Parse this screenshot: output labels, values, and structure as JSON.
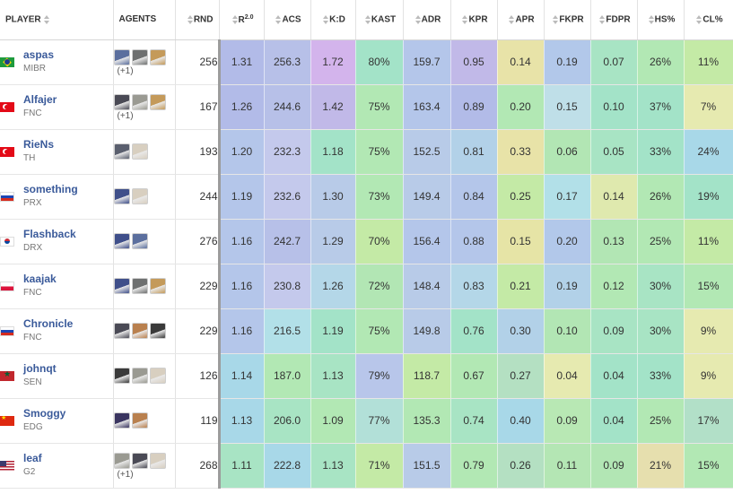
{
  "header": {
    "player": "PLAYER",
    "agents": "AGENTS",
    "rnd": "RND",
    "r2": "R",
    "r2_sup": "2.0",
    "acs": "ACS",
    "kd": "K:D",
    "kast": "KAST",
    "adr": "ADR",
    "kpr": "KPR",
    "apr": "APR",
    "fkpr": "FKPR",
    "fdpr": "FDPR",
    "hs": "HS%",
    "cl": "CL%"
  },
  "rows": [
    {
      "name": "aspas",
      "team": "MIBR",
      "flag": "br",
      "agents": [
        {
          "icon": "agent-icon",
          "color": "#5b6f9e"
        },
        {
          "icon": "agent-icon",
          "color": "#6e7070"
        },
        {
          "icon": "agent-icon",
          "color": "#c49a5a"
        }
      ],
      "more": "(+1)",
      "rnd": "256",
      "r2": "1.31",
      "acs": "256.3",
      "kd": "1.72",
      "kast": "80%",
      "adr": "159.7",
      "kpr": "0.95",
      "apr": "0.14",
      "fkpr": "0.19",
      "fdpr": "0.07",
      "hs": "26%",
      "cl": "11%"
    },
    {
      "name": "Alfajer",
      "team": "FNC",
      "flag": "tr",
      "agents": [
        {
          "icon": "agent-icon",
          "color": "#4a4a55"
        },
        {
          "icon": "agent-icon",
          "color": "#9a9a92"
        },
        {
          "icon": "agent-icon",
          "color": "#c49a5a"
        }
      ],
      "more": "(+1)",
      "rnd": "167",
      "r2": "1.26",
      "acs": "244.6",
      "kd": "1.42",
      "kast": "75%",
      "adr": "163.4",
      "kpr": "0.89",
      "apr": "0.20",
      "fkpr": "0.15",
      "fdpr": "0.10",
      "hs": "37%",
      "cl": "7%"
    },
    {
      "name": "RieNs",
      "team": "TH",
      "flag": "tr",
      "agents": [
        {
          "icon": "agent-icon",
          "color": "#5a5f6e"
        },
        {
          "icon": "agent-icon",
          "color": "#d8cfc0"
        }
      ],
      "more": "",
      "rnd": "193",
      "r2": "1.20",
      "acs": "232.3",
      "kd": "1.18",
      "kast": "75%",
      "adr": "152.5",
      "kpr": "0.81",
      "apr": "0.33",
      "fkpr": "0.06",
      "fdpr": "0.05",
      "hs": "33%",
      "cl": "24%"
    },
    {
      "name": "something",
      "team": "PRX",
      "flag": "ru",
      "agents": [
        {
          "icon": "agent-icon",
          "color": "#3f4f8a"
        },
        {
          "icon": "agent-icon",
          "color": "#d8cfc0"
        }
      ],
      "more": "",
      "rnd": "244",
      "r2": "1.19",
      "acs": "232.6",
      "kd": "1.30",
      "kast": "73%",
      "adr": "149.4",
      "kpr": "0.84",
      "apr": "0.25",
      "fkpr": "0.17",
      "fdpr": "0.14",
      "hs": "26%",
      "cl": "19%"
    },
    {
      "name": "Flashback",
      "team": "DRX",
      "flag": "kr",
      "agents": [
        {
          "icon": "agent-icon",
          "color": "#3f4f8a"
        },
        {
          "icon": "agent-icon",
          "color": "#5b6f9e"
        }
      ],
      "more": "",
      "rnd": "276",
      "r2": "1.16",
      "acs": "242.7",
      "kd": "1.29",
      "kast": "70%",
      "adr": "156.4",
      "kpr": "0.88",
      "apr": "0.15",
      "fkpr": "0.20",
      "fdpr": "0.13",
      "hs": "25%",
      "cl": "11%"
    },
    {
      "name": "kaajak",
      "team": "FNC",
      "flag": "pl",
      "agents": [
        {
          "icon": "agent-icon",
          "color": "#3f4f8a"
        },
        {
          "icon": "agent-icon",
          "color": "#6e7070"
        },
        {
          "icon": "agent-icon",
          "color": "#c49a5a"
        }
      ],
      "more": "",
      "rnd": "229",
      "r2": "1.16",
      "acs": "230.8",
      "kd": "1.26",
      "kast": "72%",
      "adr": "148.4",
      "kpr": "0.83",
      "apr": "0.21",
      "fkpr": "0.19",
      "fdpr": "0.12",
      "hs": "30%",
      "cl": "15%"
    },
    {
      "name": "Chronicle",
      "team": "FNC",
      "flag": "ru",
      "agents": [
        {
          "icon": "agent-icon",
          "color": "#4a4a55"
        },
        {
          "icon": "agent-icon",
          "color": "#b9804e"
        },
        {
          "icon": "agent-icon",
          "color": "#3a3a3a"
        }
      ],
      "more": "",
      "rnd": "229",
      "r2": "1.16",
      "acs": "216.5",
      "kd": "1.19",
      "kast": "75%",
      "adr": "149.8",
      "kpr": "0.76",
      "apr": "0.30",
      "fkpr": "0.10",
      "fdpr": "0.09",
      "hs": "30%",
      "cl": "9%"
    },
    {
      "name": "johnqt",
      "team": "SEN",
      "flag": "ma",
      "agents": [
        {
          "icon": "agent-icon",
          "color": "#3a3a3a"
        },
        {
          "icon": "agent-icon",
          "color": "#9a9a92"
        },
        {
          "icon": "agent-icon",
          "color": "#d8cfc0"
        }
      ],
      "more": "",
      "rnd": "126",
      "r2": "1.14",
      "acs": "187.0",
      "kd": "1.13",
      "kast": "79%",
      "adr": "118.7",
      "kpr": "0.67",
      "apr": "0.27",
      "fkpr": "0.04",
      "fdpr": "0.04",
      "hs": "33%",
      "cl": "9%"
    },
    {
      "name": "Smoggy",
      "team": "EDG",
      "flag": "cn",
      "agents": [
        {
          "icon": "agent-icon",
          "color": "#3a3560"
        },
        {
          "icon": "agent-icon",
          "color": "#b9804e"
        }
      ],
      "more": "",
      "rnd": "119",
      "r2": "1.13",
      "acs": "206.0",
      "kd": "1.09",
      "kast": "77%",
      "adr": "135.3",
      "kpr": "0.74",
      "apr": "0.40",
      "fkpr": "0.09",
      "fdpr": "0.04",
      "hs": "25%",
      "cl": "17%"
    },
    {
      "name": "leaf",
      "team": "G2",
      "flag": "us",
      "agents": [
        {
          "icon": "agent-icon",
          "color": "#9a9a92"
        },
        {
          "icon": "agent-icon",
          "color": "#4a4a55"
        },
        {
          "icon": "agent-icon",
          "color": "#d8cfc0"
        }
      ],
      "more": "(+1)",
      "rnd": "268",
      "r2": "1.11",
      "acs": "222.8",
      "kd": "1.13",
      "kast": "71%",
      "adr": "151.5",
      "kpr": "0.79",
      "apr": "0.26",
      "fkpr": "0.11",
      "fdpr": "0.09",
      "hs": "21%",
      "cl": "15%"
    }
  ],
  "cell_colors": [
    [
      "#b2bbe8",
      "#b7c0e8",
      "#d3b4ec",
      "#a3e3c8",
      "#b4c6ea",
      "#c1b9e8",
      "#e8e3a8",
      "#b2c8ea",
      "#a8e4c4",
      "#b2e8b4",
      "#c4eaa6"
    ],
    [
      "#b2bbe8",
      "#b7c0e8",
      "#c1b9e8",
      "#b2e8b4",
      "#b4c6ea",
      "#b2bbe8",
      "#b2e8b4",
      "#bfdfe8",
      "#a3e3c8",
      "#a3e3c8",
      "#e6eab0"
    ],
    [
      "#b4c6ea",
      "#c4c9ec",
      "#a3e3c8",
      "#b2e8b4",
      "#b8cbe8",
      "#b2d1e8",
      "#e8e3a8",
      "#b2e6b4",
      "#a8e4c4",
      "#a3e3c8",
      "#a8d8e8"
    ],
    [
      "#b4c6ea",
      "#c4c9ec",
      "#b8cbe8",
      "#b2e8b4",
      "#b8cbe8",
      "#b4c6ea",
      "#c4eaa6",
      "#b2e0e8",
      "#dfe9ae",
      "#b2e8b4",
      "#a3e3c8"
    ],
    [
      "#b4c6ea",
      "#b7c0e8",
      "#b8cbe8",
      "#c4eaa6",
      "#b4c6ea",
      "#b4c6ea",
      "#e6e4a6",
      "#b2c8ea",
      "#b2e6b4",
      "#b2e8b4",
      "#c4eaa6"
    ],
    [
      "#b4c6ea",
      "#c4c9ec",
      "#b4d7e8",
      "#b2e6b4",
      "#b8cbe8",
      "#b4d7e8",
      "#c4eaa6",
      "#b2d1e8",
      "#b2e8b4",
      "#a8e4c4",
      "#b2e8b4"
    ],
    [
      "#b4c6ea",
      "#b2e0e8",
      "#a3e3c8",
      "#b2e8b4",
      "#b8cbe8",
      "#a3e3c8",
      "#b2d1e8",
      "#b2e6b4",
      "#a8e4c4",
      "#a8e4c4",
      "#e6eab0"
    ],
    [
      "#a8d8e8",
      "#b2e8b4",
      "#a8e4c4",
      "#b8c6ea",
      "#c4eaa6",
      "#b2e8b4",
      "#b4e0c2",
      "#e6eab0",
      "#a3e3c8",
      "#a3e3c8",
      "#e6eab0"
    ],
    [
      "#a8d8e8",
      "#a8e4c4",
      "#b2e8b4",
      "#b2e0d8",
      "#b2e8b4",
      "#a8e4c4",
      "#a8d8e8",
      "#b8e8b4",
      "#a3e3c8",
      "#b2e8b4",
      "#b2e0c8"
    ],
    [
      "#a8e4c4",
      "#a8d8e8",
      "#a8e4c4",
      "#c4eaa6",
      "#b8cbe8",
      "#b2e8b4",
      "#b4e0c2",
      "#b4e6b4",
      "#b2e6b4",
      "#e6dfae",
      "#b2e8b4"
    ]
  ]
}
